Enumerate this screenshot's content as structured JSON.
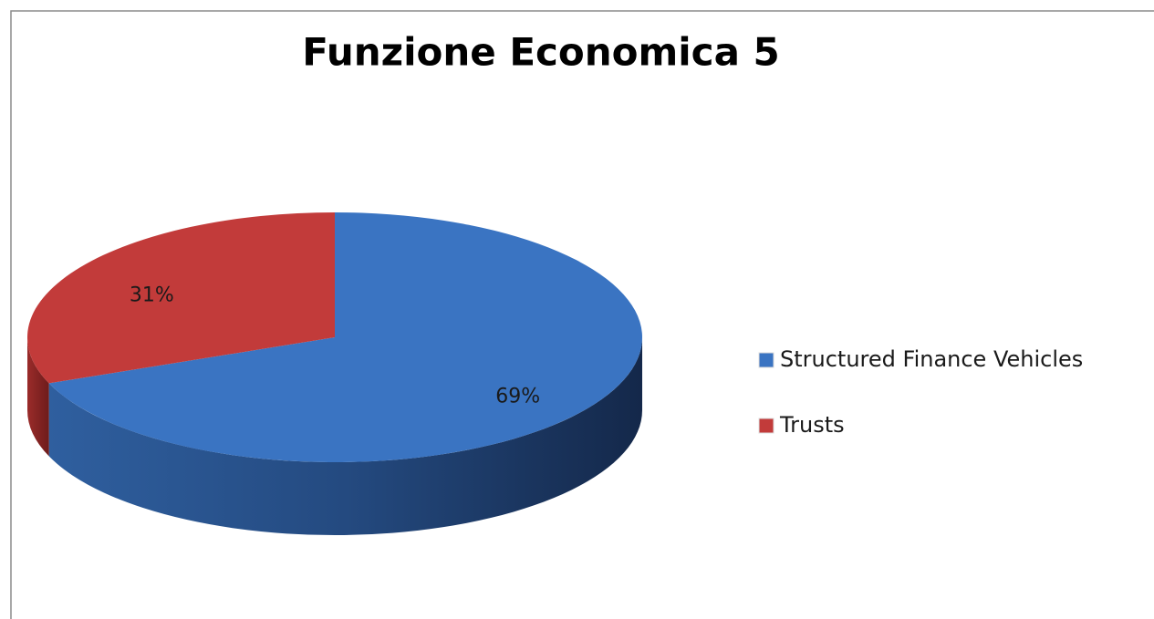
{
  "chart_data": {
    "type": "pie",
    "title": "Funzione Economica 5",
    "categories": [
      "Structured Finance Vehicles",
      "Trusts"
    ],
    "values": [
      69,
      31
    ],
    "value_labels": [
      "69%",
      "31%"
    ],
    "colors": [
      "#3a74c2",
      "#c23b3a"
    ],
    "legend": "right"
  }
}
